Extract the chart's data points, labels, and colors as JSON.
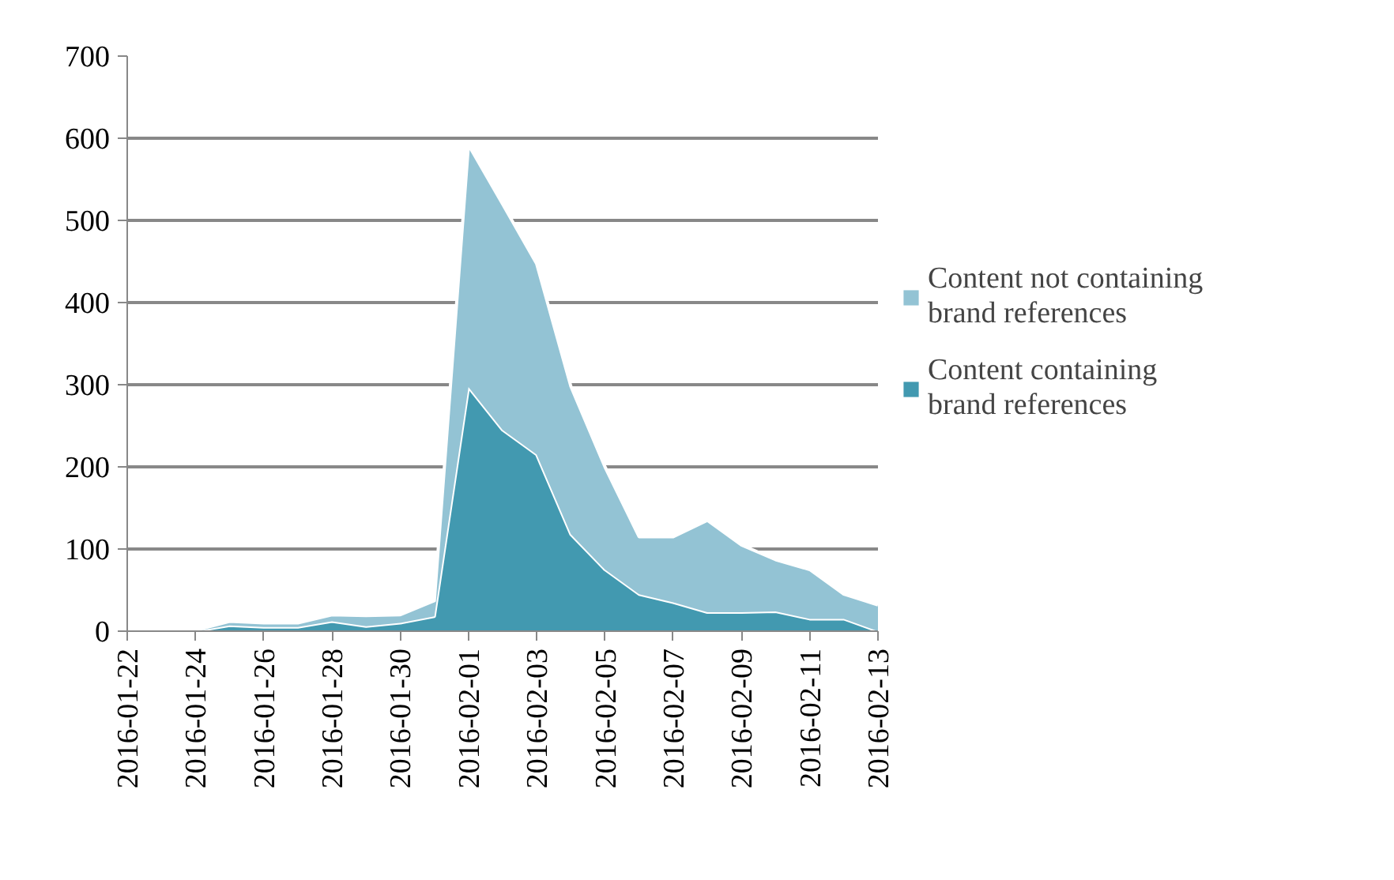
{
  "chart_data": {
    "type": "area",
    "stacked": true,
    "x": [
      "2016-01-22",
      "2016-01-23",
      "2016-01-24",
      "2016-01-25",
      "2016-01-26",
      "2016-01-27",
      "2016-01-28",
      "2016-01-29",
      "2016-01-30",
      "2016-01-31",
      "2016-02-01",
      "2016-02-02",
      "2016-02-03",
      "2016-02-04",
      "2016-02-05",
      "2016-02-06",
      "2016-02-07",
      "2016-02-08",
      "2016-02-09",
      "2016-02-10",
      "2016-02-11",
      "2016-02-12",
      "2016-02-13"
    ],
    "series": [
      {
        "name": "Content containing brand references",
        "color": "#4299b0",
        "values": [
          0,
          0,
          0,
          7,
          5,
          5,
          12,
          6,
          10,
          18,
          297,
          245,
          215,
          118,
          75,
          45,
          35,
          23,
          23,
          24,
          15,
          15,
          0
        ]
      },
      {
        "name": "Content not containing brand references",
        "color": "#93c3d4",
        "values": [
          3,
          0,
          1,
          5,
          5,
          5,
          8,
          13,
          10,
          19,
          295,
          275,
          232,
          180,
          125,
          70,
          80,
          112,
          82,
          63,
          60,
          30,
          32
        ]
      }
    ],
    "xlim": [
      "2016-01-22",
      "2016-02-13"
    ],
    "xticks": [
      "2016-01-22",
      "2016-01-24",
      "2016-01-26",
      "2016-01-28",
      "2016-01-30",
      "2016-02-01",
      "2016-02-03",
      "2016-02-05",
      "2016-02-07",
      "2016-02-09",
      "2016-02-11",
      "2016-02-13"
    ],
    "ylim": [
      0,
      700
    ],
    "yticks": [
      0,
      100,
      200,
      300,
      400,
      500,
      600,
      700
    ],
    "grid": "y",
    "legend": "right"
  }
}
